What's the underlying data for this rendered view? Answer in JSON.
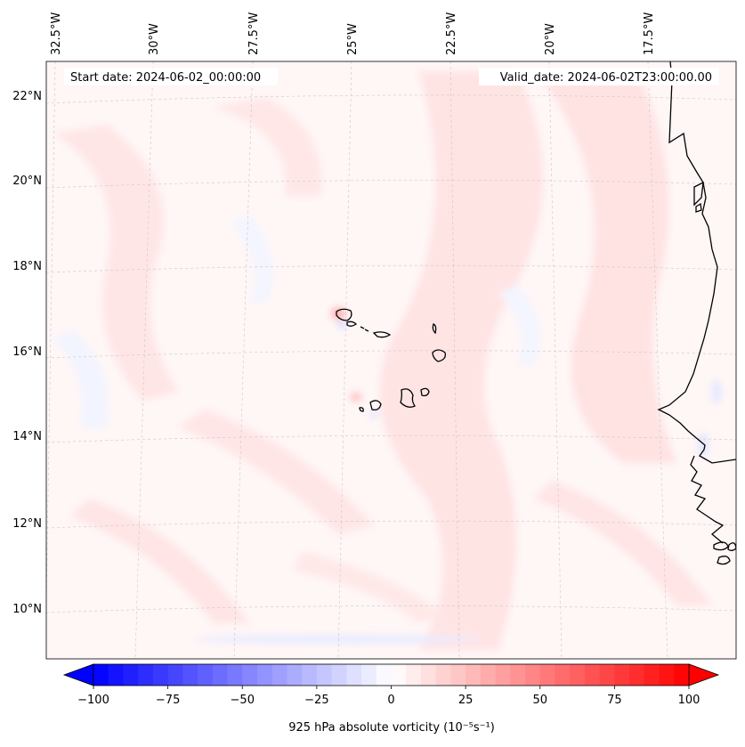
{
  "header": {
    "start_date": "Start date: 2024-06-02_00:00:00",
    "valid_date": "Valid_date: 2024-06-02T23:00:00.00"
  },
  "map": {
    "lon_labels": [
      "32.5°W",
      "30°W",
      "27.5°W",
      "25°W",
      "22.5°W",
      "20°W",
      "17.5°W"
    ],
    "lat_labels": [
      "22°N",
      "20°N",
      "18°N",
      "16°N",
      "14°N",
      "12°N",
      "10°N"
    ],
    "gridlines": true,
    "background_color": "#fff6f6"
  },
  "colorbar": {
    "label": "925 hPa absolute vorticity (10⁻⁵s⁻¹)",
    "min": -100,
    "max": 100,
    "ticks": [
      "−100",
      "−75",
      "−50",
      "−25",
      "0",
      "25",
      "50",
      "75",
      "100"
    ],
    "extend": "both",
    "colors": {
      "negative": "#0000ff",
      "neutral": "#ffffff",
      "positive": "#ff0000"
    }
  }
}
